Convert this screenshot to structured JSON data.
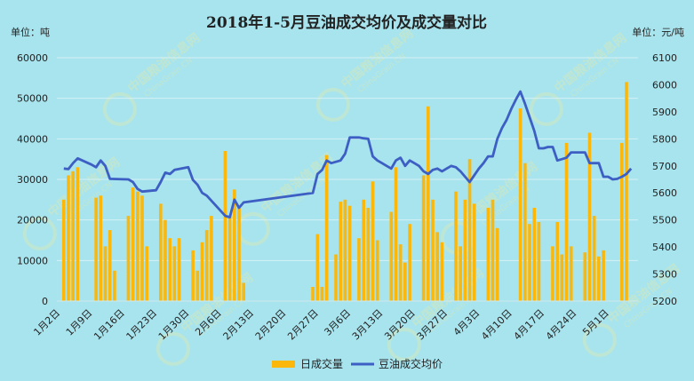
{
  "chart_data": {
    "type": "bar+line",
    "title": "2018年1-5月豆油成交均价及成交量对比",
    "left_unit": "单位：吨",
    "right_unit": "单位：元/吨",
    "left_axis": {
      "min": 0,
      "max": 60000,
      "ticks": [
        "0",
        "10000",
        "20000",
        "30000",
        "40000",
        "50000",
        "60000"
      ]
    },
    "right_axis": {
      "min": 5200,
      "max": 6100,
      "ticks": [
        "5200",
        "5300",
        "5400",
        "5500",
        "5600",
        "5700",
        "5800",
        "5900",
        "6000",
        "6100"
      ]
    },
    "x_labels": [
      "1月2日",
      "1月9日",
      "1月16日",
      "1月23日",
      "1月30日",
      "2月6日",
      "2月13日",
      "2月20日",
      "2月27日",
      "3月6日",
      "3月13日",
      "3月20日",
      "3月27日",
      "4月3日",
      "4月10日",
      "4月17日",
      "4月24日",
      "5月1日"
    ],
    "legend": [
      {
        "name": "日成交量",
        "color": "#fbb80b"
      },
      {
        "name": "豆油成交均价",
        "color": "#3d5fc4"
      }
    ],
    "series": [
      {
        "name": "日成交量",
        "kind": "bar",
        "axis": "left",
        "color": "#fbb80b",
        "values": [
          [
            1,
            25000
          ],
          [
            2,
            31000
          ],
          [
            3,
            32000
          ],
          [
            4,
            33000
          ],
          [
            8,
            25500
          ],
          [
            9,
            26000
          ],
          [
            10,
            13500
          ],
          [
            11,
            17500
          ],
          [
            12,
            7500
          ],
          [
            15,
            21000
          ],
          [
            16,
            28000
          ],
          [
            17,
            27000
          ],
          [
            18,
            26000
          ],
          [
            19,
            13500
          ],
          [
            22,
            24000
          ],
          [
            23,
            20000
          ],
          [
            24,
            15500
          ],
          [
            25,
            13500
          ],
          [
            26,
            15500
          ],
          [
            29,
            12500
          ],
          [
            30,
            7500
          ],
          [
            31,
            14500
          ],
          [
            32,
            17500
          ],
          [
            33,
            21000
          ],
          [
            36,
            37000
          ],
          [
            37,
            21000
          ],
          [
            38,
            27500
          ],
          [
            39,
            23000
          ],
          [
            40,
            4500
          ],
          [
            55,
            3500
          ],
          [
            56,
            16500
          ],
          [
            57,
            3500
          ],
          [
            58,
            36000
          ],
          [
            60,
            11500
          ],
          [
            61,
            24500
          ],
          [
            62,
            25000
          ],
          [
            63,
            23500
          ],
          [
            65,
            15500
          ],
          [
            66,
            25000
          ],
          [
            67,
            23000
          ],
          [
            68,
            29500
          ],
          [
            69,
            15000
          ],
          [
            72,
            22000
          ],
          [
            73,
            33000
          ],
          [
            74,
            14000
          ],
          [
            75,
            9500
          ],
          [
            76,
            19000
          ],
          [
            79,
            31000
          ],
          [
            80,
            48000
          ],
          [
            81,
            25000
          ],
          [
            82,
            17000
          ],
          [
            83,
            14500
          ],
          [
            86,
            27000
          ],
          [
            87,
            13500
          ],
          [
            88,
            25000
          ],
          [
            89,
            35000
          ],
          [
            90,
            24000
          ],
          [
            93,
            23000
          ],
          [
            94,
            25000
          ],
          [
            95,
            18000
          ],
          [
            100,
            47500
          ],
          [
            101,
            34000
          ],
          [
            102,
            19000
          ],
          [
            103,
            23000
          ],
          [
            104,
            19500
          ],
          [
            107,
            13500
          ],
          [
            108,
            19500
          ],
          [
            109,
            11500
          ],
          [
            110,
            39000
          ],
          [
            111,
            13500
          ],
          [
            114,
            12000
          ],
          [
            115,
            41500
          ],
          [
            116,
            21000
          ],
          [
            117,
            11000
          ],
          [
            118,
            12500
          ],
          [
            122,
            39000
          ],
          [
            123,
            54000
          ]
        ]
      },
      {
        "name": "豆油成交均价",
        "kind": "line",
        "axis": "right",
        "color": "#3d5fc4",
        "values": [
          [
            1,
            5690
          ],
          [
            2,
            5688
          ],
          [
            3,
            5710
          ],
          [
            4,
            5728
          ],
          [
            7,
            5705
          ],
          [
            8,
            5695
          ],
          [
            9,
            5720
          ],
          [
            10,
            5700
          ],
          [
            11,
            5652
          ],
          [
            15,
            5650
          ],
          [
            16,
            5640
          ],
          [
            17,
            5615
          ],
          [
            18,
            5605
          ],
          [
            21,
            5610
          ],
          [
            22,
            5640
          ],
          [
            23,
            5675
          ],
          [
            24,
            5670
          ],
          [
            25,
            5685
          ],
          [
            28,
            5695
          ],
          [
            29,
            5648
          ],
          [
            30,
            5630
          ],
          [
            31,
            5600
          ],
          [
            32,
            5590
          ],
          [
            36,
            5515
          ],
          [
            37,
            5510
          ],
          [
            38,
            5575
          ],
          [
            39,
            5545
          ],
          [
            40,
            5565
          ],
          [
            55,
            5600
          ],
          [
            56,
            5670
          ],
          [
            57,
            5685
          ],
          [
            58,
            5720
          ],
          [
            59,
            5710
          ],
          [
            60,
            5715
          ],
          [
            61,
            5720
          ],
          [
            62,
            5745
          ],
          [
            63,
            5805
          ],
          [
            64,
            5805
          ],
          [
            65,
            5805
          ],
          [
            66,
            5802
          ],
          [
            67,
            5800
          ],
          [
            68,
            5735
          ],
          [
            69,
            5720
          ],
          [
            70,
            5710
          ],
          [
            71,
            5700
          ],
          [
            72,
            5690
          ],
          [
            73,
            5720
          ],
          [
            74,
            5730
          ],
          [
            75,
            5700
          ],
          [
            76,
            5720
          ],
          [
            77,
            5710
          ],
          [
            78,
            5700
          ],
          [
            79,
            5680
          ],
          [
            80,
            5670
          ],
          [
            81,
            5685
          ],
          [
            82,
            5690
          ],
          [
            83,
            5680
          ],
          [
            84,
            5690
          ],
          [
            85,
            5700
          ],
          [
            86,
            5695
          ],
          [
            87,
            5680
          ],
          [
            88,
            5660
          ],
          [
            89,
            5640
          ],
          [
            90,
            5665
          ],
          [
            91,
            5690
          ],
          [
            92,
            5710
          ],
          [
            93,
            5735
          ],
          [
            94,
            5735
          ],
          [
            95,
            5800
          ],
          [
            96,
            5840
          ],
          [
            97,
            5870
          ],
          [
            98,
            5910
          ],
          [
            99,
            5945
          ],
          [
            100,
            5975
          ],
          [
            101,
            5930
          ],
          [
            102,
            5880
          ],
          [
            103,
            5830
          ],
          [
            104,
            5765
          ],
          [
            105,
            5765
          ],
          [
            106,
            5770
          ],
          [
            107,
            5770
          ],
          [
            108,
            5720
          ],
          [
            109,
            5725
          ],
          [
            110,
            5730
          ],
          [
            111,
            5750
          ],
          [
            112,
            5750
          ],
          [
            113,
            5750
          ],
          [
            114,
            5750
          ],
          [
            115,
            5710
          ],
          [
            116,
            5710
          ],
          [
            117,
            5710
          ],
          [
            118,
            5660
          ],
          [
            119,
            5660
          ],
          [
            120,
            5650
          ],
          [
            121,
            5652
          ],
          [
            122,
            5660
          ],
          [
            123,
            5670
          ],
          [
            124,
            5690
          ]
        ]
      }
    ]
  },
  "watermark": {
    "text": "中国粮油信息网",
    "url": "ChinaGrain.CN"
  }
}
